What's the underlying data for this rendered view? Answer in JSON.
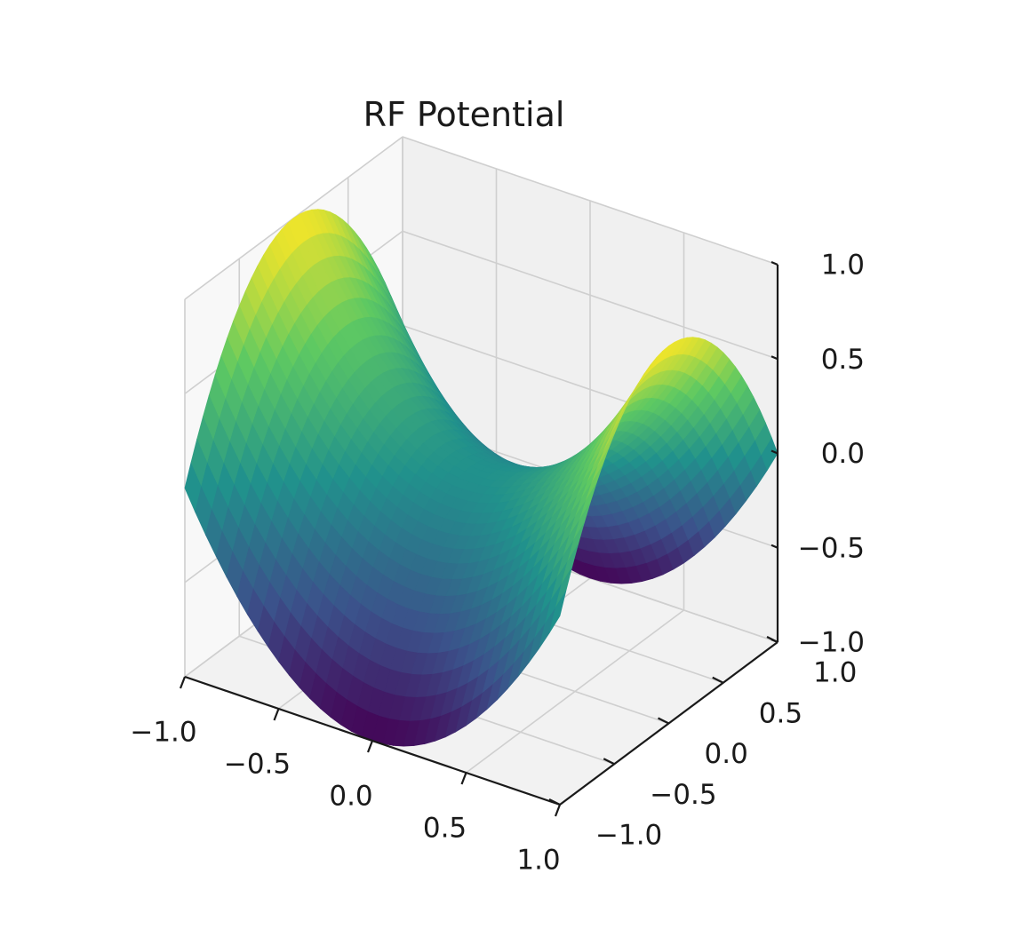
{
  "chart_data": {
    "type": "surface",
    "title": "RF Potential",
    "function": "z = x^2 - y^2",
    "colormap": "viridis",
    "colormap_stops": [
      "#440154",
      "#3b528b",
      "#21918c",
      "#5ec962",
      "#fde725"
    ],
    "x": [
      -1.0,
      -0.5,
      0.0,
      0.5,
      1.0
    ],
    "y": [
      -1.0,
      -0.5,
      0.0,
      0.5,
      1.0
    ],
    "z_samples": [
      [
        0.0,
        -0.75,
        -1.0,
        -0.75,
        0.0
      ],
      [
        0.75,
        0.0,
        -0.25,
        0.0,
        0.75
      ],
      [
        1.0,
        0.25,
        0.0,
        0.25,
        1.0
      ],
      [
        0.75,
        0.0,
        -0.25,
        0.0,
        0.75
      ],
      [
        0.0,
        -0.75,
        -1.0,
        -0.75,
        0.0
      ]
    ],
    "xlim": [
      -1.0,
      1.0
    ],
    "ylim": [
      -1.0,
      1.0
    ],
    "zlim": [
      -1.0,
      1.0
    ],
    "x_ticks": [
      "−1.0",
      "−0.5",
      "0.0",
      "0.5",
      "1.0"
    ],
    "y_ticks": [
      "−1.0",
      "−0.5",
      "0.0",
      "0.5",
      "1.0"
    ],
    "z_ticks": [
      "−1.0",
      "−0.5",
      "0.0",
      "0.5",
      "1.0"
    ],
    "xlabel": "",
    "ylabel": "",
    "zlabel": "",
    "grid": true
  }
}
